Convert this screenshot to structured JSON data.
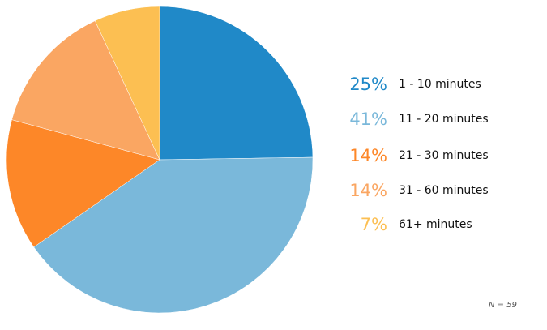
{
  "chart_data": {
    "type": "pie",
    "slices": [
      {
        "percent_label": "25%",
        "label": "1 - 10 minutes",
        "value": 25,
        "color": "#2089c8"
      },
      {
        "percent_label": "41%",
        "label": "11 - 20 minutes",
        "value": 41,
        "color": "#7ab8da"
      },
      {
        "percent_label": "14%",
        "label": "21 - 30 minutes",
        "value": 14,
        "color": "#fd8728"
      },
      {
        "percent_label": "14%",
        "label": "31 - 60 minutes",
        "value": 14,
        "color": "#faa662"
      },
      {
        "percent_label": "7%",
        "label": "61+ minutes",
        "value": 7,
        "color": "#fcbf52"
      }
    ],
    "legend_placement": "right",
    "footnote": "N = 59"
  }
}
